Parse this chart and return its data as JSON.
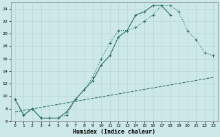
{
  "xlabel": "Humidex (Indice chaleur)",
  "bg_color": "#cce8e8",
  "line_color": "#2a6e5e",
  "grid_color": "#b8d4d4",
  "line1_x": [
    0,
    1,
    2,
    3,
    4,
    5,
    6,
    7,
    8,
    9,
    10,
    11,
    12,
    13,
    14,
    15,
    16,
    17,
    18,
    19,
    20,
    21,
    22,
    23
  ],
  "line1_y": [
    9.5,
    7.0,
    8.0,
    6.5,
    6.5,
    6.5,
    7.0,
    9.5,
    11.0,
    13.0,
    16.0,
    18.5,
    20.5,
    20.5,
    21.0,
    22.0,
    23.0,
    24.5,
    24.5,
    23.5,
    20.5,
    19.0,
    17.0,
    16.5
  ],
  "line2_x": [
    0,
    1,
    2,
    3,
    4,
    5,
    6,
    7,
    8,
    9,
    10,
    11,
    12,
    13,
    14,
    15,
    16,
    17,
    18
  ],
  "line2_y": [
    9.5,
    7.0,
    8.0,
    6.5,
    6.5,
    6.5,
    7.5,
    9.5,
    11.0,
    12.5,
    15.0,
    16.5,
    19.5,
    20.5,
    23.0,
    23.5,
    24.5,
    24.5,
    23.0
  ],
  "line3_x": [
    0,
    23
  ],
  "line3_y": [
    7.5,
    13.0
  ],
  "xlim": [
    -0.5,
    23.5
  ],
  "ylim": [
    6,
    25
  ],
  "yticks": [
    6,
    8,
    10,
    12,
    14,
    16,
    18,
    20,
    22,
    24
  ],
  "xticks": [
    0,
    1,
    2,
    3,
    4,
    5,
    6,
    7,
    8,
    9,
    10,
    11,
    12,
    13,
    14,
    15,
    16,
    17,
    18,
    19,
    20,
    21,
    22,
    23
  ]
}
